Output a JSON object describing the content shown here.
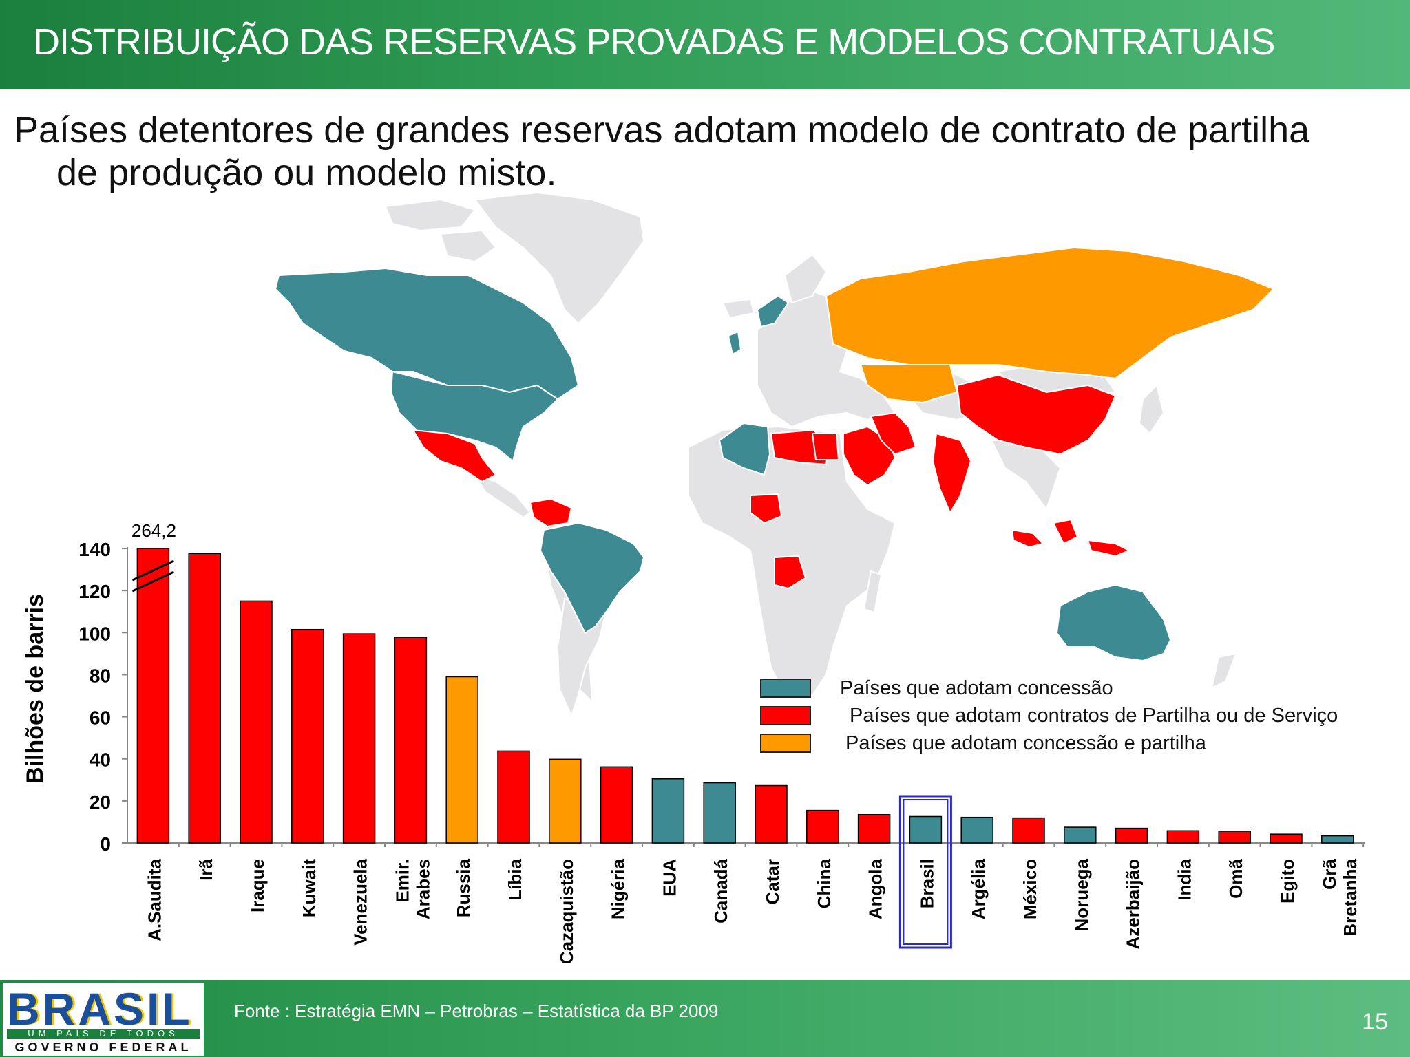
{
  "slide": {
    "title": "DISTRIBUIÇÃO DAS RESERVAS PROVADAS E MODELOS CONTRATUAIS",
    "subtitle_line1": "Países detentores de grandes reservas adotam modelo de contrato de partilha",
    "subtitle_line2": "de produção ou modelo misto.",
    "source": "Fonte : Estratégia EMN – Petrobras – Estatística da BP 2009",
    "page_number": "15"
  },
  "logo": {
    "word": "BRASIL",
    "tagline": "UM PAÍS DE TODOS",
    "subtitle": "GOVERNO FEDERAL"
  },
  "colors": {
    "concessao": "#3d8a92",
    "partilha": "#ff0000",
    "misto": "#ff9900",
    "map_gray": "#e3e3e6",
    "highlight": "#2b2bbd"
  },
  "legend": [
    {
      "key": "concessao",
      "label": "Países que adotam concessão"
    },
    {
      "key": "partilha",
      "label": "Países que adotam contratos de Partilha ou de Serviço"
    },
    {
      "key": "misto",
      "label": "Países que adotam concessão e partilha"
    }
  ],
  "map": {
    "regions": [
      {
        "name": "canada",
        "model": "concessao"
      },
      {
        "name": "eua",
        "model": "concessao"
      },
      {
        "name": "mexico",
        "model": "partilha"
      },
      {
        "name": "venezuela",
        "model": "partilha"
      },
      {
        "name": "brasil",
        "model": "concessao"
      },
      {
        "name": "noruega",
        "model": "concessao"
      },
      {
        "name": "gra-bretanha",
        "model": "concessao"
      },
      {
        "name": "russia",
        "model": "misto"
      },
      {
        "name": "cazaquistao",
        "model": "misto"
      },
      {
        "name": "argelia",
        "model": "concessao"
      },
      {
        "name": "libia",
        "model": "partilha"
      },
      {
        "name": "egito",
        "model": "partilha"
      },
      {
        "name": "nigeria",
        "model": "partilha"
      },
      {
        "name": "angola",
        "model": "partilha"
      },
      {
        "name": "oriente-medio",
        "model": "partilha"
      },
      {
        "name": "ira",
        "model": "partilha"
      },
      {
        "name": "india",
        "model": "partilha"
      },
      {
        "name": "china",
        "model": "partilha"
      },
      {
        "name": "indonesia",
        "model": "partilha"
      },
      {
        "name": "australia",
        "model": "concessao"
      }
    ]
  },
  "chart_data": {
    "type": "bar",
    "ylabel": "Bilhões de barris",
    "ylim": [
      0,
      140
    ],
    "yticks": [
      0,
      20,
      40,
      60,
      80,
      100,
      120,
      140
    ],
    "grid": false,
    "legend_position": "right",
    "axis_break": {
      "category": "A.Saudita",
      "actual_value": 264.2,
      "label": "264,2"
    },
    "highlighted_category": "Brasil",
    "categories": [
      "A.Saudita",
      "Irã",
      "Iraque",
      "Kuwait",
      "Venezuela",
      "Emir. Arabes",
      "Russia",
      "Líbia",
      "Cazaquistão",
      "Nigéria",
      "EUA",
      "Canadá",
      "Catar",
      "China",
      "Angola",
      "Brasil",
      "Argélia",
      "México",
      "Noruega",
      "Azerbaijão",
      "India",
      "Omã",
      "Egito",
      "Grã Bretanha"
    ],
    "category_lines": [
      [
        "A.Saudita"
      ],
      [
        "Irã"
      ],
      [
        "Iraque"
      ],
      [
        "Kuwait"
      ],
      [
        "Venezuela"
      ],
      [
        "Emir.",
        "Arabes"
      ],
      [
        "Russia"
      ],
      [
        "Líbia"
      ],
      [
        "Cazaquistão"
      ],
      [
        "Nigéria"
      ],
      [
        "EUA"
      ],
      [
        "Canadá"
      ],
      [
        "Catar"
      ],
      [
        "China"
      ],
      [
        "Angola"
      ],
      [
        "Brasil"
      ],
      [
        "Argélia"
      ],
      [
        "México"
      ],
      [
        "Noruega"
      ],
      [
        "Azerbaijão"
      ],
      [
        "India"
      ],
      [
        "Omã"
      ],
      [
        "Egito"
      ],
      [
        "Grã",
        "Bretanha"
      ]
    ],
    "values": [
      264.2,
      137.6,
      115.0,
      101.5,
      99.4,
      97.8,
      79.0,
      43.7,
      39.8,
      36.2,
      30.5,
      28.6,
      27.3,
      15.5,
      13.5,
      12.6,
      12.2,
      11.9,
      7.5,
      7.0,
      5.8,
      5.6,
      4.2,
      3.4
    ],
    "groups": [
      "partilha",
      "partilha",
      "partilha",
      "partilha",
      "partilha",
      "partilha",
      "misto",
      "partilha",
      "misto",
      "partilha",
      "concessao",
      "concessao",
      "partilha",
      "partilha",
      "partilha",
      "concessao",
      "concessao",
      "partilha",
      "concessao",
      "partilha",
      "partilha",
      "partilha",
      "partilha",
      "concessao"
    ]
  }
}
